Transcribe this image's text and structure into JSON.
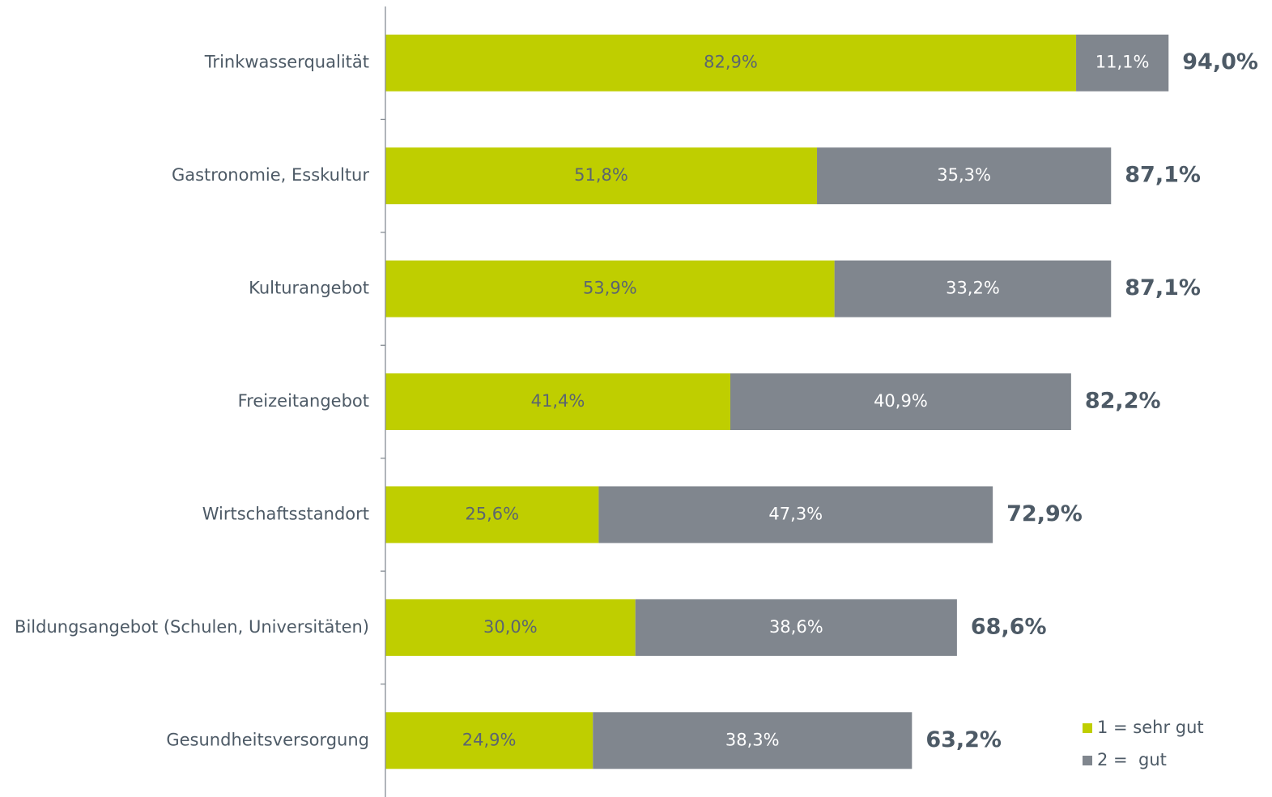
{
  "chart_data": {
    "type": "stacked-barh",
    "categories": [
      "Trinkwasserqualität",
      "Gastronomie, Esskultur",
      "Kulturangebot",
      "Freizeitangebot",
      "Wirtschaftsstandort",
      "Bildungsangebot (Schulen, Universitäten)",
      "Gesundheitsversorgung"
    ],
    "series": [
      {
        "name": "1 = sehr gut",
        "color": "#bfce00",
        "label_color": "#5b6570",
        "values": [
          82.9,
          51.8,
          53.9,
          41.4,
          25.6,
          30.0,
          24.9
        ],
        "value_labels": [
          "82,9%",
          "51,8%",
          "53,9%",
          "41,4%",
          "25,6%",
          "30,0%",
          "24,9%"
        ]
      },
      {
        "name": "2 =  gut",
        "color": "#80868e",
        "label_color": "#ffffff",
        "values": [
          11.1,
          35.3,
          33.2,
          40.9,
          47.3,
          38.6,
          38.3
        ],
        "value_labels": [
          "11,1%",
          "35,3%",
          "33,2%",
          "40,9%",
          "47,3%",
          "38,6%",
          "38,3%"
        ]
      }
    ],
    "totals": [
      94.0,
      87.1,
      87.1,
      82.2,
      72.9,
      68.6,
      63.2
    ],
    "total_labels": [
      "94,0%",
      "87,1%",
      "87,1%",
      "82,2%",
      "72,9%",
      "68,6%",
      "63,2%"
    ],
    "xlim": [
      0,
      100
    ],
    "legend": "lower right"
  }
}
